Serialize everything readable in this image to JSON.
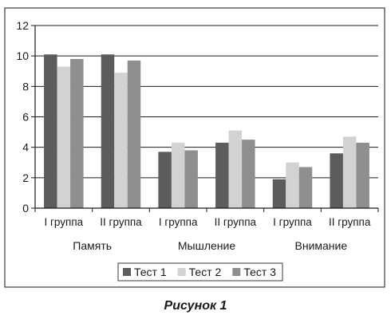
{
  "caption": "Рисунок 1",
  "colors": {
    "frame": "#3a3a3a",
    "gridline": "#1a1a1a",
    "series": [
      "#5c5c5c",
      "#d2d2d2",
      "#8f8f8f"
    ]
  },
  "chart_data": {
    "type": "bar",
    "title": "",
    "xlabel": "",
    "ylabel": "",
    "ylim": [
      0,
      12
    ],
    "yticks": [
      0,
      2,
      4,
      6,
      8,
      10,
      12
    ],
    "grid": true,
    "legend_position": "bottom",
    "categories": [
      "I группа",
      "II группа",
      "I группа",
      "II группа",
      "I группа",
      "II группа"
    ],
    "category_groups": [
      "Память",
      "Мышление",
      "Внимание"
    ],
    "series": [
      {
        "name": "Тест 1",
        "values": [
          10.1,
          10.1,
          3.7,
          4.3,
          1.9,
          3.6
        ]
      },
      {
        "name": "Тест 2",
        "values": [
          9.3,
          8.9,
          4.3,
          5.1,
          3.0,
          4.7
        ]
      },
      {
        "name": "Тест 3",
        "values": [
          9.8,
          9.7,
          3.8,
          4.5,
          2.7,
          4.3
        ]
      }
    ]
  }
}
